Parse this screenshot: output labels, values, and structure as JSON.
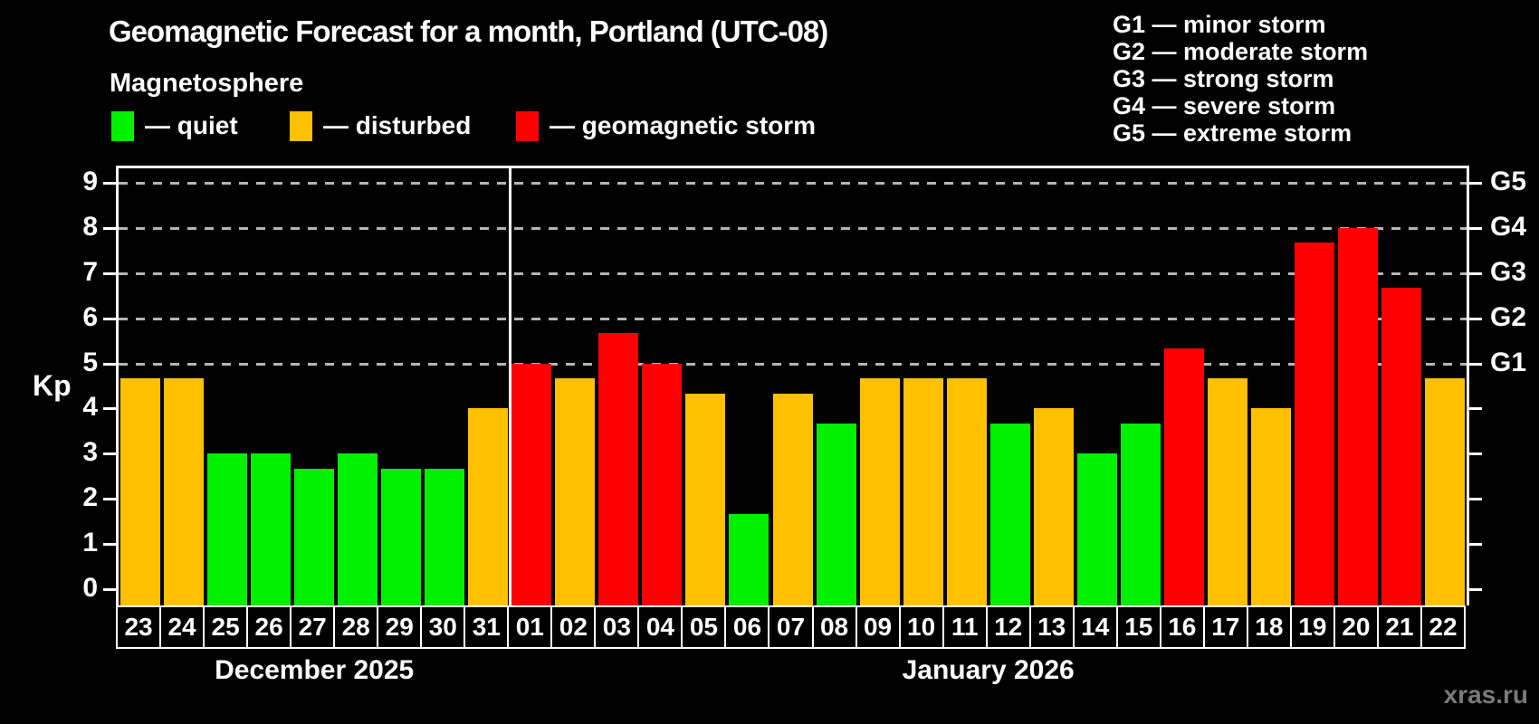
{
  "header": {
    "title": "Geomagnetic Forecast for a month, Portland (UTC-08)",
    "subtitle": "Magnetosphere"
  },
  "legend": [
    {
      "key": "quiet",
      "label": "— quiet",
      "color": "#00f000"
    },
    {
      "key": "disturbed",
      "label": "— disturbed",
      "color": "#ffc000"
    },
    {
      "key": "storm",
      "label": "— geomagnetic storm",
      "color": "#ff0000"
    }
  ],
  "g_legend": [
    "G1 — minor storm",
    "G2 — moderate storm",
    "G3 — strong storm",
    "G4 — severe storm",
    "G5 — extreme storm"
  ],
  "axes": {
    "y_title": "Kp",
    "y_ticks": [
      0,
      1,
      2,
      3,
      4,
      5,
      6,
      7,
      8,
      9
    ],
    "ylim": [
      0,
      9
    ],
    "gridlines_at": [
      5,
      6,
      7,
      8,
      9
    ],
    "grid_style": "dashed",
    "right_axis": [
      {
        "kp": 5,
        "label": "G1"
      },
      {
        "kp": 6,
        "label": "G2"
      },
      {
        "kp": 7,
        "label": "G3"
      },
      {
        "kp": 8,
        "label": "G4"
      },
      {
        "kp": 9,
        "label": "G5"
      }
    ]
  },
  "footer": {
    "watermark": "xras.ru"
  },
  "chart_data": {
    "type": "bar",
    "title": "Geomagnetic Forecast for a month, Portland (UTC-08)",
    "ylabel": "Kp",
    "ylim": [
      0,
      9
    ],
    "legend_position": "top-left",
    "x_groups": [
      {
        "month": "December 2025",
        "values": [
          {
            "day": "23",
            "kp": 4.67,
            "status": "disturbed"
          },
          {
            "day": "24",
            "kp": 4.67,
            "status": "disturbed"
          },
          {
            "day": "25",
            "kp": 3.0,
            "status": "quiet"
          },
          {
            "day": "26",
            "kp": 3.0,
            "status": "quiet"
          },
          {
            "day": "27",
            "kp": 2.67,
            "status": "quiet"
          },
          {
            "day": "28",
            "kp": 3.0,
            "status": "quiet"
          },
          {
            "day": "29",
            "kp": 2.67,
            "status": "quiet"
          },
          {
            "day": "30",
            "kp": 2.67,
            "status": "quiet"
          },
          {
            "day": "31",
            "kp": 4.0,
            "status": "disturbed"
          }
        ]
      },
      {
        "month": "January 2026",
        "values": [
          {
            "day": "01",
            "kp": 5.0,
            "status": "storm"
          },
          {
            "day": "02",
            "kp": 4.67,
            "status": "disturbed"
          },
          {
            "day": "03",
            "kp": 5.67,
            "status": "storm"
          },
          {
            "day": "04",
            "kp": 5.0,
            "status": "storm"
          },
          {
            "day": "05",
            "kp": 4.33,
            "status": "disturbed"
          },
          {
            "day": "06",
            "kp": 1.67,
            "status": "quiet"
          },
          {
            "day": "07",
            "kp": 4.33,
            "status": "disturbed"
          },
          {
            "day": "08",
            "kp": 3.67,
            "status": "quiet"
          },
          {
            "day": "09",
            "kp": 4.67,
            "status": "disturbed"
          },
          {
            "day": "10",
            "kp": 4.67,
            "status": "disturbed"
          },
          {
            "day": "11",
            "kp": 4.67,
            "status": "disturbed"
          },
          {
            "day": "12",
            "kp": 3.67,
            "status": "quiet"
          },
          {
            "day": "13",
            "kp": 4.0,
            "status": "disturbed"
          },
          {
            "day": "14",
            "kp": 3.0,
            "status": "quiet"
          },
          {
            "day": "15",
            "kp": 3.67,
            "status": "quiet"
          },
          {
            "day": "16",
            "kp": 5.33,
            "status": "storm"
          },
          {
            "day": "17",
            "kp": 4.67,
            "status": "disturbed"
          },
          {
            "day": "18",
            "kp": 4.0,
            "status": "disturbed"
          },
          {
            "day": "19",
            "kp": 7.67,
            "status": "storm"
          },
          {
            "day": "20",
            "kp": 8.0,
            "status": "storm"
          },
          {
            "day": "21",
            "kp": 6.67,
            "status": "storm"
          },
          {
            "day": "22",
            "kp": 4.67,
            "status": "disturbed"
          }
        ]
      }
    ]
  }
}
